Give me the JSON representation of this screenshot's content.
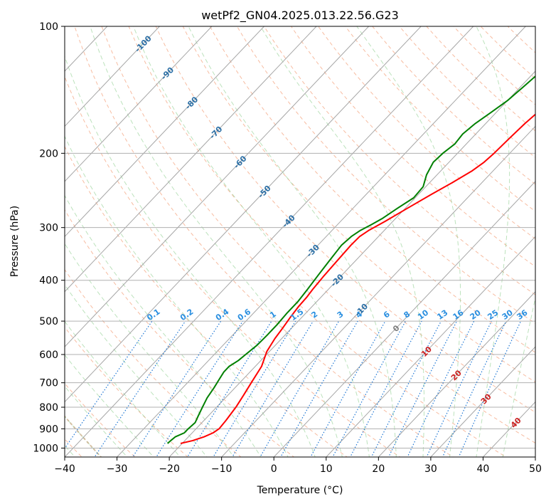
{
  "chart_data": {
    "type": "skew-t",
    "title": "wetPf2_GN04.2025.013.22.56.G23",
    "xlabel": "Temperature (°C)",
    "ylabel": "Pressure (hPa)",
    "xlim": [
      -40,
      50
    ],
    "ylim": [
      1050,
      100
    ],
    "x_ticks": [
      -40,
      -30,
      -20,
      -10,
      0,
      10,
      20,
      30,
      40,
      50
    ],
    "y_ticks": [
      100,
      200,
      300,
      400,
      500,
      600,
      700,
      800,
      900,
      1000
    ],
    "y_scale": "log",
    "grid": true,
    "isotherm_labels": [
      "-100",
      "-90",
      "-80",
      "-70",
      "-60",
      "-50",
      "-40",
      "-30",
      "-20",
      "-10",
      "0",
      "10",
      "20",
      "30",
      "40"
    ],
    "mixing_ratio_labels": [
      "0.1",
      "0.2",
      "0.4",
      "0.6",
      "1",
      "1.5",
      "2",
      "3",
      "4",
      "6",
      "8",
      "10",
      "13",
      "16",
      "20",
      "25",
      "30",
      "36"
    ],
    "series": [
      {
        "color": "#ff0000",
        "points": [
          [
            -20.3,
            975
          ],
          [
            -18.5,
            960
          ],
          [
            -17.0,
            940
          ],
          [
            -16.0,
            920
          ],
          [
            -15.6,
            900
          ],
          [
            -15.8,
            860
          ],
          [
            -16.3,
            800
          ],
          [
            -17.0,
            750
          ],
          [
            -17.8,
            700
          ],
          [
            -18.8,
            640
          ],
          [
            -20.5,
            590
          ],
          [
            -21.3,
            550
          ],
          [
            -21.7,
            520
          ],
          [
            -22.2,
            490
          ],
          [
            -22.6,
            460
          ],
          [
            -22.7,
            440
          ],
          [
            -23.0,
            420
          ],
          [
            -23.3,
            390
          ],
          [
            -23.5,
            360
          ],
          [
            -23.7,
            330
          ],
          [
            -23.6,
            315
          ],
          [
            -23.0,
            305
          ],
          [
            -21.5,
            290
          ],
          [
            -19.6,
            270
          ],
          [
            -17.5,
            250
          ],
          [
            -15.7,
            235
          ],
          [
            -14.0,
            220
          ],
          [
            -13.3,
            210
          ],
          [
            -13.0,
            200
          ],
          [
            -12.8,
            185
          ],
          [
            -12.5,
            170
          ],
          [
            -12.0,
            158
          ],
          [
            -11.0,
            145
          ],
          [
            -10.2,
            135
          ],
          [
            -9.3,
            125
          ],
          [
            -9.0,
            115
          ],
          [
            -8.8,
            108
          ],
          [
            -8.5,
            100
          ]
        ]
      },
      {
        "color": "#008000",
        "points": [
          [
            -22.8,
            975
          ],
          [
            -22.7,
            960
          ],
          [
            -22.5,
            940
          ],
          [
            -21.5,
            920
          ],
          [
            -21.5,
            900
          ],
          [
            -21.3,
            870
          ],
          [
            -21.9,
            840
          ],
          [
            -22.7,
            800
          ],
          [
            -23.5,
            760
          ],
          [
            -24.0,
            720
          ],
          [
            -24.5,
            690
          ],
          [
            -25.0,
            660
          ],
          [
            -25.0,
            640
          ],
          [
            -24.3,
            620
          ],
          [
            -24.0,
            600
          ],
          [
            -23.5,
            570
          ],
          [
            -23.4,
            540
          ],
          [
            -23.4,
            510
          ],
          [
            -23.6,
            480
          ],
          [
            -23.6,
            450
          ],
          [
            -24.0,
            420
          ],
          [
            -24.5,
            390
          ],
          [
            -25.0,
            360
          ],
          [
            -25.5,
            330
          ],
          [
            -25.2,
            315
          ],
          [
            -24.6,
            305
          ],
          [
            -23.5,
            295
          ],
          [
            -22.5,
            285
          ],
          [
            -21.5,
            270
          ],
          [
            -20.3,
            255
          ],
          [
            -20.5,
            240
          ],
          [
            -22.0,
            225
          ],
          [
            -23.0,
            210
          ],
          [
            -22.8,
            200
          ],
          [
            -22.2,
            190
          ],
          [
            -22.5,
            180
          ],
          [
            -22.0,
            170
          ],
          [
            -21.0,
            160
          ],
          [
            -20.0,
            150
          ],
          [
            -19.5,
            140
          ],
          [
            -19.0,
            130
          ],
          [
            -18.8,
            120
          ],
          [
            -18.0,
            110
          ],
          [
            -17.0,
            100
          ]
        ]
      }
    ]
  }
}
